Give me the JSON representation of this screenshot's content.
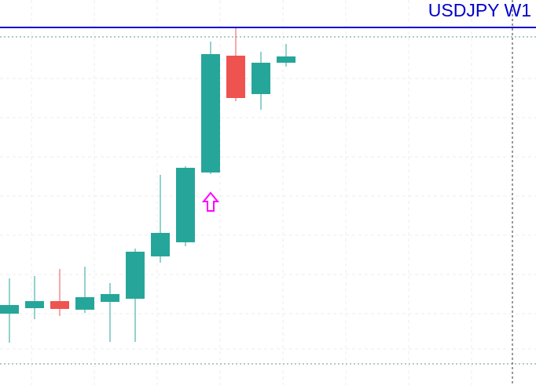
{
  "chart_data": {
    "type": "candlestick",
    "title": "USDJPY W1",
    "up_color": "#26a69a",
    "down_color": "#ef5350",
    "title_color": "#0000cc",
    "ylim": [
      0,
      491
    ],
    "open": [
      91,
      98,
      107,
      96,
      106,
      110,
      164,
      182,
      271,
      420,
      371,
      411
    ],
    "high": [
      136,
      139,
      148,
      151,
      130,
      174,
      268,
      279,
      438,
      455,
      425,
      435
    ],
    "low": [
      54,
      84,
      88,
      92,
      55,
      55,
      156,
      177,
      269,
      362,
      351,
      406
    ],
    "close": [
      102,
      107,
      97,
      112,
      116,
      170,
      194,
      277,
      422,
      366,
      411,
      419
    ]
  }
}
